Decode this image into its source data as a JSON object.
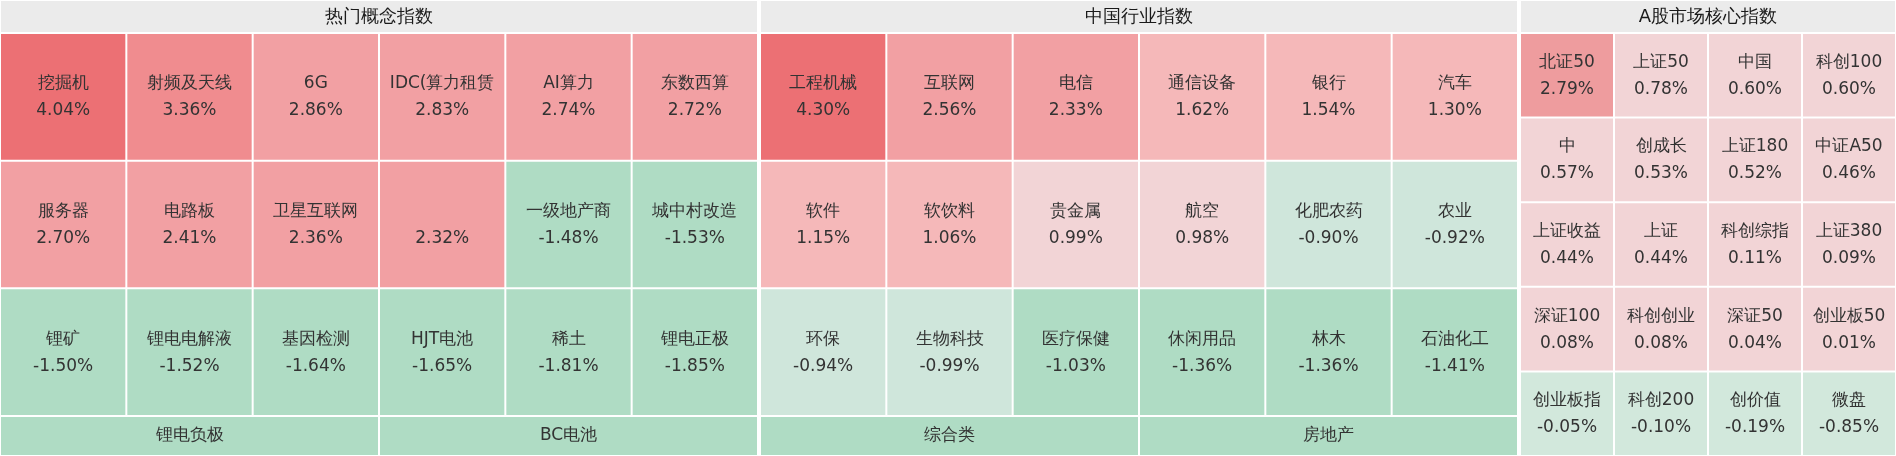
{
  "chart_data": [
    {
      "type": "other",
      "title": "热门概念指数",
      "categories": [
        "挖掘机",
        "射频及天线",
        "6G",
        "IDC(算力租赁",
        "AI算力",
        "东数西算",
        "服务器",
        "电路板",
        "卫星互联网",
        null,
        "一级地产商",
        "城中村改造",
        "锂矿",
        "锂电电解液",
        "基因检测",
        "HJT电池",
        "稀土",
        "锂电正极",
        "锂电负极",
        "BC电池"
      ],
      "values": [
        4.04,
        3.36,
        2.86,
        2.83,
        2.74,
        2.72,
        2.7,
        2.41,
        2.36,
        2.32,
        -1.48,
        -1.53,
        -1.5,
        -1.52,
        -1.64,
        -1.65,
        -1.81,
        -1.85,
        null,
        null
      ],
      "value_labels": [
        "4.04%",
        "3.36%",
        "2.86%",
        "2.83%",
        "2.74%",
        "2.72%",
        "2.70%",
        "2.41%",
        "2.36%",
        "2.32%",
        "-1.48%",
        "-1.53%",
        "-1.50%",
        "-1.52%",
        "-1.64%",
        "-1.65%",
        "-1.81%",
        "-1.85%",
        null,
        null
      ],
      "colors": [
        "#ec7074",
        "#f08c8f",
        "#f2a0a3",
        "#f2a0a3",
        "#f2a0a3",
        "#f2a0a3",
        "#f2a0a3",
        "#f2a0a3",
        "#f2a0a3",
        "#f2a0a3",
        "#afdcc4",
        "#afdcc4",
        "#afdcc4",
        "#afdcc4",
        "#afdcc4",
        "#afdcc4",
        "#afdcc4",
        "#afdcc4",
        "#afdcc4",
        "#afdcc4"
      ]
    },
    {
      "type": "other",
      "title": "中国行业指数",
      "categories": [
        "工程机械",
        "互联网",
        "电信",
        "通信设备",
        "银行",
        "汽车",
        "软件",
        "软饮料",
        "贵金属",
        "航空",
        "化肥农药",
        "农业",
        "环保",
        "生物科技",
        "医疗保健",
        "休闲用品",
        "林木",
        "石油化工",
        "综合类",
        "房地产"
      ],
      "values": [
        4.3,
        2.56,
        2.33,
        1.62,
        1.54,
        1.3,
        1.15,
        1.06,
        0.99,
        0.98,
        -0.9,
        -0.92,
        -0.94,
        -0.99,
        -1.03,
        -1.36,
        -1.36,
        -1.41,
        null,
        null
      ],
      "value_labels": [
        "4.30%",
        "2.56%",
        "2.33%",
        "1.62%",
        "1.54%",
        "1.30%",
        "1.15%",
        "1.06%",
        "0.99%",
        "0.98%",
        "-0.90%",
        "-0.92%",
        "-0.94%",
        "-0.99%",
        "-1.03%",
        "-1.36%",
        "-1.36%",
        "-1.41%",
        null,
        null
      ],
      "colors": [
        "#ec7074",
        "#f2a0a3",
        "#f2a0a3",
        "#f5b8b9",
        "#f5b8b9",
        "#f5b8b9",
        "#f5b8b9",
        "#f5b8b9",
        "#f2d4d6",
        "#f2d4d6",
        "#cfe6db",
        "#cfe6db",
        "#cfe6db",
        "#cfe6db",
        "#afdcc4",
        "#afdcc4",
        "#afdcc4",
        "#afdcc4",
        "#afdcc4",
        "#afdcc4"
      ]
    },
    {
      "type": "other",
      "title": "A股市场核心指数",
      "categories": [
        "北证50",
        "上证50",
        "中国",
        "科创100",
        "中",
        "创成长",
        "上证180",
        "中证A50",
        "上证收益",
        "上证",
        "科创综指",
        "上证380",
        "深证100",
        "科创创业",
        "深证50",
        "创业板50",
        "创业板指",
        "科创200",
        "创价值",
        "微盘"
      ],
      "values": [
        2.79,
        0.78,
        0.6,
        0.6,
        0.57,
        0.53,
        0.52,
        0.46,
        0.44,
        0.44,
        0.11,
        0.09,
        0.08,
        0.08,
        0.04,
        0.01,
        -0.05,
        -0.1,
        -0.19,
        -0.85
      ],
      "value_labels": [
        "2.79%",
        "0.78%",
        "0.60%",
        "0.60%",
        "0.57%",
        "0.53%",
        "0.52%",
        "0.46%",
        "0.44%",
        "0.44%",
        "0.11%",
        "0.09%",
        "0.08%",
        "0.08%",
        "0.04%",
        "0.01%",
        "-0.05%",
        "-0.10%",
        "-0.19%",
        "-0.85%"
      ],
      "colors": [
        "#ee9c9e",
        "#f2d4d6",
        "#f2d4d6",
        "#f2d4d6",
        "#f2d4d6",
        "#f2d4d6",
        "#f2d4d6",
        "#f2d4d6",
        "#f2d4d6",
        "#f2d4d6",
        "#f2d4d6",
        "#f2d4d6",
        "#f2d4d6",
        "#f2d4d6",
        "#f2d4d6",
        "#f2d4d6",
        "#d2e8dc",
        "#d2e8dc",
        "#d2e8dc",
        "#d2e8dc"
      ]
    }
  ]
}
